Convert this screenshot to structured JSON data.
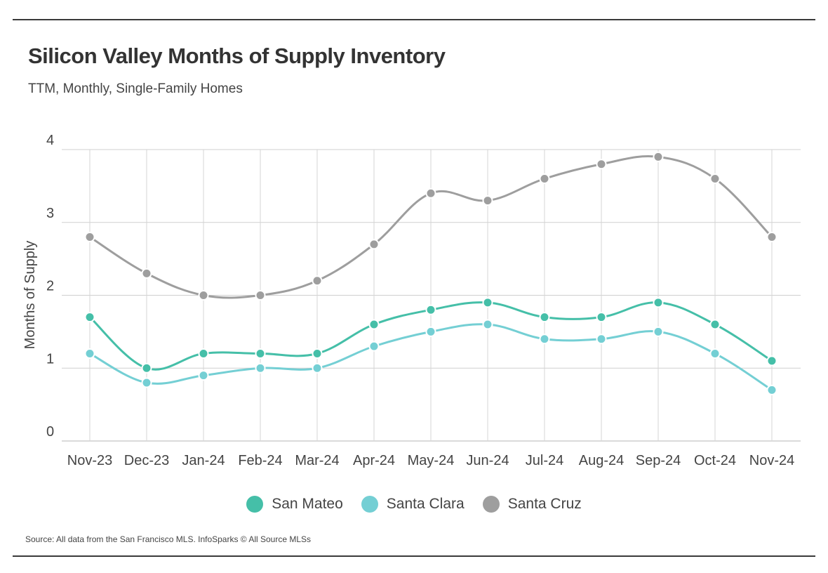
{
  "header": {
    "title": "Silicon Valley Months of Supply Inventory",
    "subtitle": "TTM, Monthly, Single-Family Homes"
  },
  "footer": {
    "source": "Source:  All data from the San Francisco MLS. InfoSparks © All Source MLSs"
  },
  "chart_data": {
    "type": "line",
    "title": "Silicon Valley Months of Supply Inventory",
    "subtitle": "TTM, Monthly, Single-Family Homes",
    "xlabel": "",
    "ylabel": "Months of Supply",
    "categories": [
      "Nov-23",
      "Dec-23",
      "Jan-24",
      "Feb-24",
      "Mar-24",
      "Apr-24",
      "May-24",
      "Jun-24",
      "Jul-24",
      "Aug-24",
      "Sep-24",
      "Oct-24",
      "Nov-24"
    ],
    "ylim": [
      0,
      4
    ],
    "yticks": [
      0,
      1,
      2,
      3,
      4
    ],
    "grid": true,
    "legend": "bottom-center",
    "series": [
      {
        "name": "San Mateo",
        "color": "#45bfa8",
        "values": [
          1.7,
          1.0,
          1.2,
          1.2,
          1.2,
          1.6,
          1.8,
          1.9,
          1.7,
          1.7,
          1.9,
          1.6,
          1.1
        ]
      },
      {
        "name": "Santa Clara",
        "color": "#74cfd4",
        "values": [
          1.2,
          0.8,
          0.9,
          1.0,
          1.0,
          1.3,
          1.5,
          1.6,
          1.4,
          1.4,
          1.5,
          1.2,
          0.7
        ]
      },
      {
        "name": "Santa Cruz",
        "color": "#9e9e9e",
        "values": [
          2.8,
          2.3,
          2.0,
          2.0,
          2.2,
          2.7,
          3.4,
          3.3,
          3.6,
          3.8,
          3.9,
          3.6,
          2.8
        ]
      }
    ]
  }
}
